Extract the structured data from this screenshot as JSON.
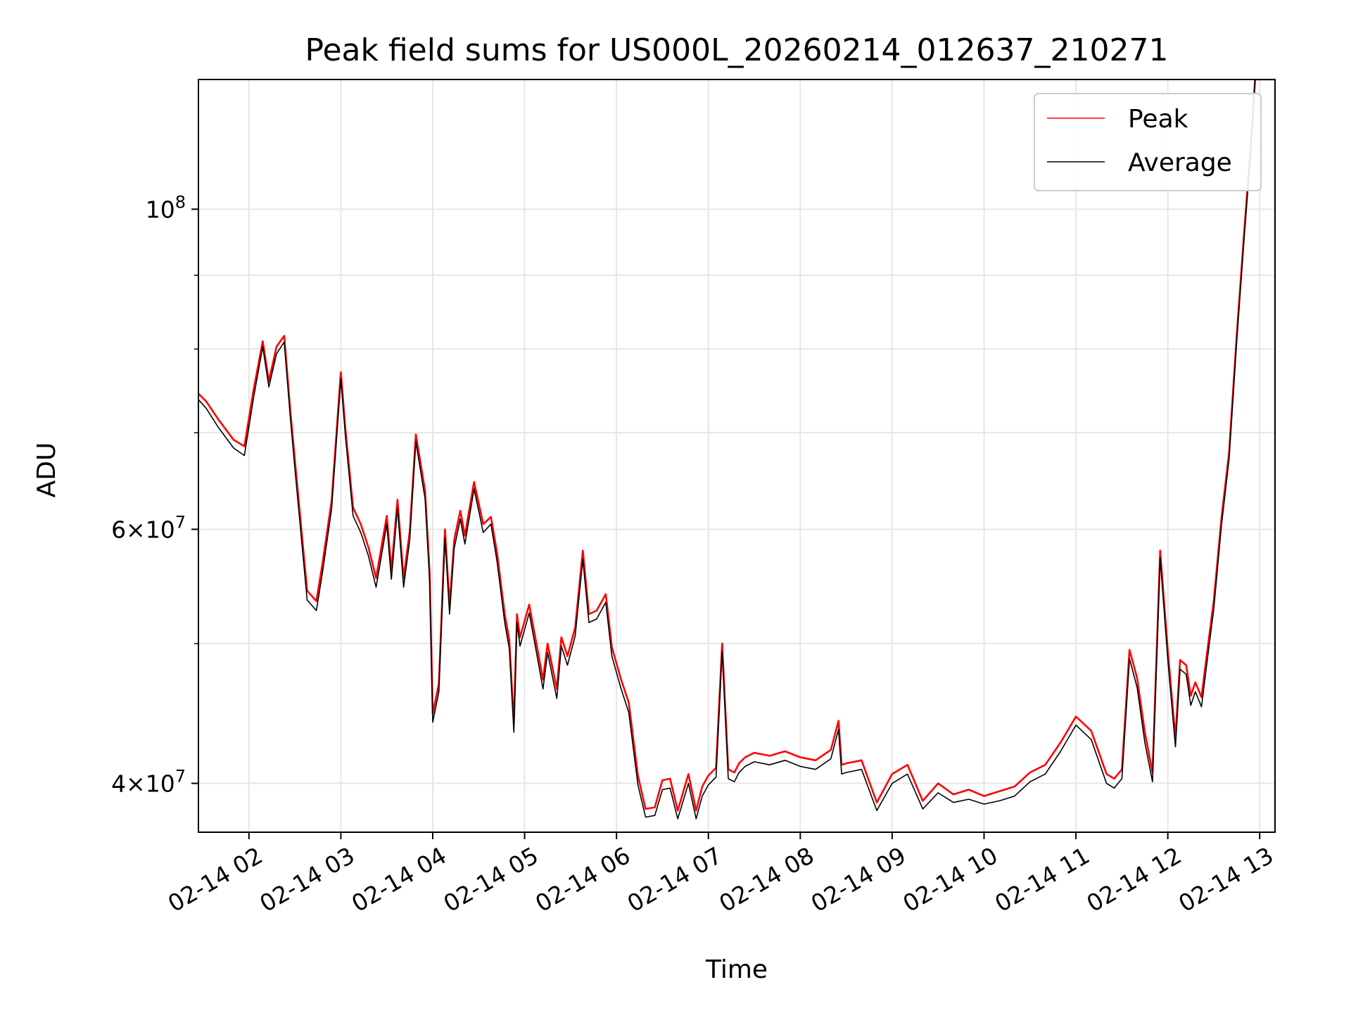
{
  "chart_data": {
    "type": "line",
    "title": "Peak field sums for US000L_20260214_012637_210271",
    "xlabel": "Time",
    "ylabel": "ADU",
    "y_scale": "log",
    "ylim": [
      37000000,
      123000000
    ],
    "xlim": [
      "02-14 01:27",
      "02-14 13:10"
    ],
    "grid": true,
    "legend": "top-right",
    "x_ticks": [
      "02-14 02",
      "02-14 03",
      "02-14 04",
      "02-14 05",
      "02-14 06",
      "02-14 07",
      "02-14 08",
      "02-14 09",
      "02-14 10",
      "02-14 11",
      "02-14 12",
      "02-14 13"
    ],
    "y_tick_labels": [
      {
        "value": 100000000,
        "mantissa": "",
        "base": "10",
        "exp": "8"
      },
      {
        "value": 60000000,
        "mantissa": "6×",
        "base": "10",
        "exp": "7"
      },
      {
        "value": 40000000,
        "mantissa": "4×",
        "base": "10",
        "exp": "7"
      }
    ],
    "y_minor_ticks": [
      50000000,
      70000000,
      80000000,
      90000000
    ],
    "x": [
      "02-14 01:27",
      "02-14 01:32",
      "02-14 01:40",
      "02-14 01:50",
      "02-14 01:57",
      "02-14 02:03",
      "02-14 02:09",
      "02-14 02:13",
      "02-14 02:18",
      "02-14 02:23",
      "02-14 02:27",
      "02-14 02:30",
      "02-14 02:38",
      "02-14 02:44",
      "02-14 02:48",
      "02-14 02:54",
      "02-14 03:00",
      "02-14 03:03",
      "02-14 03:08",
      "02-14 03:13",
      "02-14 03:18",
      "02-14 03:23",
      "02-14 03:30",
      "02-14 03:33",
      "02-14 03:37",
      "02-14 03:41",
      "02-14 03:45",
      "02-14 03:49",
      "02-14 03:55",
      "02-14 03:58",
      "02-14 04:00",
      "02-14 04:04",
      "02-14 04:08",
      "02-14 04:11",
      "02-14 04:14",
      "02-14 04:18",
      "02-14 04:21",
      "02-14 04:27",
      "02-14 04:33",
      "02-14 04:38",
      "02-14 04:42",
      "02-14 04:47",
      "02-14 04:50",
      "02-14 04:53",
      "02-14 04:55",
      "02-14 04:57",
      "02-14 05:03",
      "02-14 05:08",
      "02-14 05:12",
      "02-14 05:15",
      "02-14 05:21",
      "02-14 05:24",
      "02-14 05:28",
      "02-14 05:33",
      "02-14 05:38",
      "02-14 05:42",
      "02-14 05:47",
      "02-14 05:53",
      "02-14 05:57",
      "02-14 06:03",
      "02-14 06:08",
      "02-14 06:14",
      "02-14 06:19",
      "02-14 06:25",
      "02-14 06:30",
      "02-14 06:35",
      "02-14 06:40",
      "02-14 06:47",
      "02-14 06:52",
      "02-14 06:56",
      "02-14 07:00",
      "02-14 07:05",
      "02-14 07:09",
      "02-14 07:13",
      "02-14 07:17",
      "02-14 07:20",
      "02-14 07:24",
      "02-14 07:30",
      "02-14 07:40",
      "02-14 07:50",
      "02-14 08:00",
      "02-14 08:10",
      "02-14 08:20",
      "02-14 08:25",
      "02-14 08:27",
      "02-14 08:30",
      "02-14 08:40",
      "02-14 08:50",
      "02-14 09:00",
      "02-14 09:10",
      "02-14 09:20",
      "02-14 09:30",
      "02-14 09:40",
      "02-14 09:50",
      "02-14 10:00",
      "02-14 10:10",
      "02-14 10:20",
      "02-14 10:30",
      "02-14 10:40",
      "02-14 10:50",
      "02-14 11:00",
      "02-14 11:10",
      "02-14 11:20",
      "02-14 11:25",
      "02-14 11:30",
      "02-14 11:35",
      "02-14 11:40",
      "02-14 11:45",
      "02-14 11:50",
      "02-14 11:55",
      "02-14 12:00",
      "02-14 12:05",
      "02-14 12:08",
      "02-14 12:12",
      "02-14 12:15",
      "02-14 12:18",
      "02-14 12:22",
      "02-14 12:26",
      "02-14 12:30",
      "02-14 12:35",
      "02-14 12:40",
      "02-14 12:45",
      "02-14 12:50",
      "02-14 12:54",
      "02-14 12:57",
      "02-14 13:00",
      "02-14 13:03",
      "02-14 13:06",
      "02-14 13:08",
      "02-14 13:10"
    ],
    "series": [
      {
        "name": "Peak",
        "color": "#ff0000",
        "values": [
          74500000,
          73600000,
          71500000,
          69200000,
          68500000,
          74900000,
          81000000,
          76000000,
          80300000,
          81700000,
          72500000,
          67000000,
          54400000,
          53500000,
          56800000,
          62800000,
          77100000,
          70400000,
          62100000,
          60500000,
          58300000,
          55500000,
          61300000,
          56200000,
          62900000,
          55500000,
          59800000,
          69800000,
          63800000,
          56000000,
          44700000,
          46900000,
          60000000,
          53100000,
          59000000,
          61800000,
          59400000,
          64700000,
          60500000,
          61200000,
          57800000,
          52400000,
          50300000,
          44000000,
          52400000,
          50500000,
          53200000,
          49800000,
          47200000,
          50000000,
          46500000,
          50500000,
          49000000,
          51300000,
          58000000,
          52400000,
          52700000,
          54100000,
          49700000,
          47200000,
          45500000,
          40500000,
          38400000,
          38500000,
          40200000,
          40300000,
          38300000,
          40600000,
          38300000,
          39800000,
          40500000,
          41000000,
          50000000,
          40900000,
          40700000,
          41300000,
          41700000,
          42000000,
          41800000,
          42100000,
          41700000,
          41500000,
          42200000,
          44200000,
          41200000,
          41300000,
          41500000,
          38800000,
          40600000,
          41200000,
          38900000,
          40000000,
          39300000,
          39600000,
          39200000,
          39500000,
          39800000,
          40700000,
          41200000,
          42700000,
          44500000,
          43500000,
          40600000,
          40300000,
          40900000,
          49500000,
          47300000,
          43400000,
          40700000,
          58000000,
          49400000,
          43000000,
          48700000,
          48300000,
          46000000,
          47000000,
          45900000,
          49600000,
          53500000,
          61000000,
          67800000,
          81800000,
          96900000,
          110000000,
          123000000,
          123000000,
          123000000,
          123000000,
          123000000,
          123000000
        ]
      },
      {
        "name": "Average",
        "color": "#000000",
        "values": [
          73800000,
          72800000,
          70600000,
          68300000,
          67500000,
          74000000,
          80300000,
          75300000,
          79400000,
          80900000,
          71700000,
          66100000,
          53600000,
          52700000,
          56000000,
          62000000,
          76300000,
          69600000,
          61300000,
          59700000,
          57500000,
          54700000,
          60500000,
          55400000,
          62100000,
          54700000,
          59000000,
          69000000,
          63000000,
          55200000,
          44100000,
          46300000,
          59200000,
          52400000,
          58200000,
          61000000,
          58600000,
          64000000,
          59700000,
          60500000,
          57000000,
          51700000,
          49600000,
          43400000,
          51700000,
          49800000,
          52500000,
          49100000,
          46500000,
          49300000,
          45800000,
          49800000,
          48300000,
          50600000,
          57200000,
          51700000,
          52000000,
          53400000,
          49000000,
          46500000,
          44800000,
          39900000,
          37900000,
          38000000,
          39600000,
          39700000,
          37800000,
          40000000,
          37800000,
          39200000,
          39900000,
          40400000,
          49400000,
          40300000,
          40100000,
          40700000,
          41100000,
          41400000,
          41200000,
          41500000,
          41100000,
          40900000,
          41600000,
          43600000,
          40600000,
          40700000,
          40900000,
          38300000,
          40000000,
          40600000,
          38400000,
          39400000,
          38800000,
          39000000,
          38700000,
          38900000,
          39200000,
          40100000,
          40600000,
          42100000,
          43900000,
          42900000,
          40000000,
          39700000,
          40300000,
          48800000,
          46600000,
          42700000,
          40100000,
          57300000,
          48700000,
          42400000,
          48000000,
          47600000,
          45300000,
          46300000,
          45200000,
          48900000,
          52800000,
          60300000,
          67100000,
          81000000,
          96000000,
          109000000,
          123000000,
          123000000,
          123000000,
          123000000,
          123000000,
          123000000
        ]
      }
    ]
  }
}
